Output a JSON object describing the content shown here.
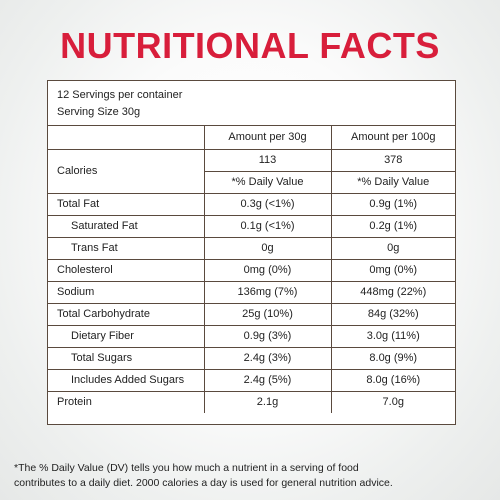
{
  "title": "NUTRITIONAL FACTS",
  "serving": {
    "line1": "12 Servings per container",
    "line2": "Serving Size 30g"
  },
  "headers": {
    "col1": "Amount per 30g",
    "col2": "Amount per 100g"
  },
  "calories": {
    "label": "Calories",
    "v30": "113",
    "v100": "378"
  },
  "dv_header": {
    "col1": "*% Daily Value",
    "col2": "*% Daily Value"
  },
  "rows": [
    {
      "label": "Total Fat",
      "v30": "0.3g (<1%)",
      "v100": "0.9g (1%)"
    },
    {
      "label": "Saturated Fat",
      "v30": "0.1g (<1%)",
      "v100": "0.2g (1%)"
    },
    {
      "label": "Trans Fat",
      "v30": "0g",
      "v100": "0g"
    },
    {
      "label": "Cholesterol",
      "v30": "0mg (0%)",
      "v100": "0mg (0%)"
    },
    {
      "label": "Sodium",
      "v30": "136mg (7%)",
      "v100": "448mg (22%)"
    },
    {
      "label": "Total Carbohydrate",
      "v30": "25g (10%)",
      "v100": "84g (32%)"
    },
    {
      "label": "Dietary Fiber",
      "v30": "0.9g (3%)",
      "v100": "3.0g (11%)"
    },
    {
      "label": "Total Sugars",
      "v30": "2.4g (3%)",
      "v100": "8.0g (9%)"
    },
    {
      "label": "Includes Added Sugars",
      "v30": "2.4g (5%)",
      "v100": "8.0g (16%)"
    },
    {
      "label": "Protein",
      "v30": "2.1g",
      "v100": "7.0g"
    }
  ],
  "footnote": {
    "line1": "*The % Daily Value (DV) tells you how much a nutrient in a serving of food",
    "line2": "contributes to a daily diet. 2000 calories a day is used for general nutrition advice."
  },
  "colors": {
    "title": "#d81e3b",
    "border": "#5a4a3e"
  }
}
